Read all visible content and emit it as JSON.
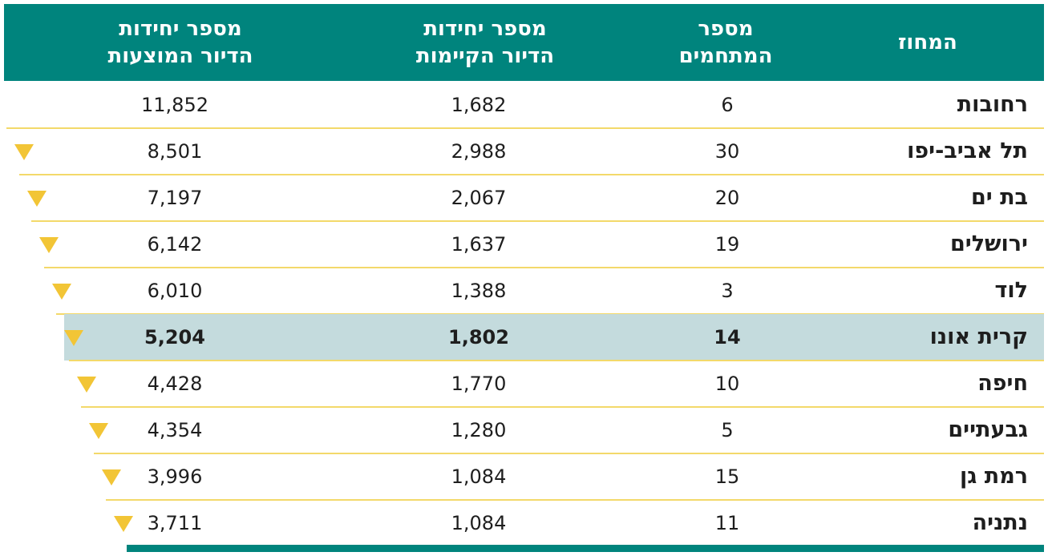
{
  "colors": {
    "header_bg": "#00847d",
    "highlight_row": "#c4dbdd",
    "row_divider": "#f3d96a",
    "marker": "#f2c536",
    "text": "#1e1e1e"
  },
  "chart_data": {
    "type": "table",
    "columns": [
      {
        "key": "district",
        "label": "המחוז"
      },
      {
        "key": "developers",
        "label": "מספר\nהמתחמים"
      },
      {
        "key": "existing_units",
        "label": "מספר יחידות\nהדיור הקיימות"
      },
      {
        "key": "proposed_units",
        "label": "מספר יחידות\nהדיור המוצעות"
      }
    ],
    "rows": [
      {
        "district": "רחובות",
        "developers": "6",
        "existing_units": "1,682",
        "proposed_units": "11,852",
        "marker": false,
        "highlight": false
      },
      {
        "district": "תל אביב-יפו",
        "developers": "30",
        "existing_units": "2,988",
        "proposed_units": "8,501",
        "marker": true,
        "highlight": false
      },
      {
        "district": "בת ים",
        "developers": "20",
        "existing_units": "2,067",
        "proposed_units": "7,197",
        "marker": true,
        "highlight": false
      },
      {
        "district": "ירושלים",
        "developers": "19",
        "existing_units": "1,637",
        "proposed_units": "6,142",
        "marker": true,
        "highlight": false
      },
      {
        "district": "לוד",
        "developers": "3",
        "existing_units": "1,388",
        "proposed_units": "6,010",
        "marker": true,
        "highlight": false
      },
      {
        "district": "קרית אונו",
        "developers": "14",
        "existing_units": "1,802",
        "proposed_units": "5,204",
        "marker": true,
        "highlight": true
      },
      {
        "district": "חיפה",
        "developers": "10",
        "existing_units": "1,770",
        "proposed_units": "4,428",
        "marker": true,
        "highlight": false
      },
      {
        "district": "גבעתיים",
        "developers": "5",
        "existing_units": "1,280",
        "proposed_units": "4,354",
        "marker": true,
        "highlight": false
      },
      {
        "district": "רמת גן",
        "developers": "15",
        "existing_units": "1,084",
        "proposed_units": "3,996",
        "marker": true,
        "highlight": false
      },
      {
        "district": "נתניה",
        "developers": "11",
        "existing_units": "1,084",
        "proposed_units": "3,711",
        "marker": true,
        "highlight": false
      }
    ]
  }
}
